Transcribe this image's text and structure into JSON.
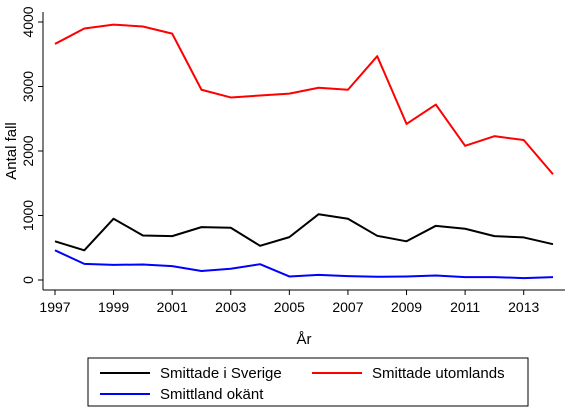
{
  "chart_data": {
    "type": "line",
    "x": [
      1997,
      1998,
      1999,
      2000,
      2001,
      2002,
      2003,
      2004,
      2005,
      2006,
      2007,
      2008,
      2009,
      2010,
      2011,
      2012,
      2013,
      2014
    ],
    "xticks": [
      1997,
      1999,
      2001,
      2003,
      2005,
      2007,
      2009,
      2011,
      2013
    ],
    "xticklabels": [
      "1997",
      "1999",
      "2001",
      "2003",
      "2005",
      "2007",
      "2009",
      "2011",
      "2013"
    ],
    "yticks": [
      0,
      1000,
      2000,
      3000,
      4000
    ],
    "yticklabels": [
      "0",
      "1000",
      "2000",
      "3000",
      "4000"
    ],
    "xlim": [
      1997,
      2014
    ],
    "ylim": [
      0,
      4000
    ],
    "xlabel": "År",
    "ylabel": "Antal fall",
    "grid": false,
    "legend_position": "bottom",
    "series": [
      {
        "name": "Smittade i Sverige",
        "color": "#000000",
        "values": [
          600,
          460,
          950,
          690,
          680,
          820,
          810,
          530,
          665,
          1020,
          950,
          685,
          600,
          840,
          795,
          680,
          660,
          555
        ]
      },
      {
        "name": "Smittade utomlands",
        "color": "#ff0000",
        "values": [
          3660,
          3900,
          3960,
          3930,
          3820,
          2950,
          2830,
          2860,
          2890,
          2980,
          2950,
          3470,
          2420,
          2720,
          2080,
          2230,
          2170,
          1640
        ]
      },
      {
        "name": "Smittland okänt",
        "color": "#0000ff",
        "values": [
          460,
          250,
          235,
          240,
          215,
          140,
          175,
          245,
          55,
          80,
          60,
          50,
          55,
          70,
          45,
          45,
          30,
          45
        ]
      }
    ]
  }
}
